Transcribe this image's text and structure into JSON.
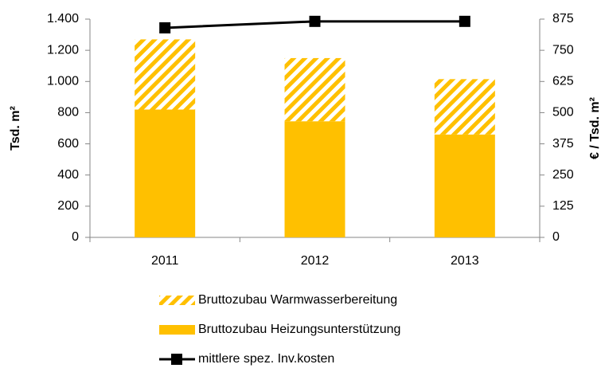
{
  "chart_data": {
    "type": "bar",
    "stacked": true,
    "categories": [
      "2011",
      "2012",
      "2013"
    ],
    "series": [
      {
        "name": "Bruttozubau Heizungsunterstützung",
        "color": "#ffc000",
        "values": [
          820,
          745,
          660
        ]
      },
      {
        "name": "Bruttozubau Warmwasserbereitung",
        "color": "#ffc000",
        "hatch": true,
        "values": [
          450,
          405,
          355
        ]
      },
      {
        "name": "mittlere spez. Inv.kosten",
        "type": "line",
        "axis": "y2",
        "color": "#000000",
        "marker": "square",
        "values": [
          840,
          866,
          866
        ]
      }
    ],
    "ylabel": "Tsd. m²",
    "y2label": "€ / Tsd. m²",
    "ylim": [
      0,
      1400
    ],
    "yticks": [
      0,
      200,
      400,
      600,
      800,
      {
        "value": 1000,
        "label": "1.000"
      },
      {
        "value": 1200,
        "label": "1.200"
      },
      {
        "value": 1400,
        "label": "1.400"
      }
    ],
    "y2lim": [
      0,
      875
    ],
    "y2ticks": [
      0,
      125,
      250,
      375,
      500,
      625,
      750,
      875
    ],
    "grid": false,
    "legend": "bottom"
  }
}
